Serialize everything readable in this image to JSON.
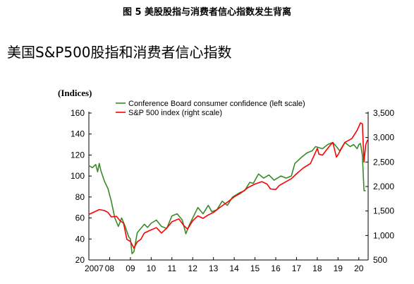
{
  "figure_caption": "图 5  美股股指与消费者信心指数发生背离",
  "figure_heading": "美国S&P500股指和消费者信心指数",
  "chart_data": {
    "type": "line",
    "unit_label": "(Indices)",
    "x_ticks": [
      "2007",
      "08",
      "09",
      "10",
      "11",
      "12",
      "13",
      "14",
      "15",
      "16",
      "17",
      "18",
      "19",
      "20"
    ],
    "x_range": [
      2007,
      2020.45
    ],
    "left_axis": {
      "range": [
        20,
        160
      ],
      "ticks": [
        "20",
        "40",
        "60",
        "80",
        "100",
        "120",
        "140",
        "160"
      ]
    },
    "right_axis": {
      "range": [
        500,
        3500
      ],
      "ticks": [
        "500",
        "1,000",
        "1,500",
        "2,000",
        "2,500",
        "3,000",
        "3,500"
      ]
    },
    "legend_position": "top-center",
    "series": [
      {
        "name": "Conference Board consumer confidence (left scale)",
        "axis": "left",
        "color": "#3a8a2a",
        "x": [
          2007.0,
          2007.17,
          2007.33,
          2007.42,
          2007.5,
          2007.58,
          2007.75,
          2007.92,
          2008.08,
          2008.25,
          2008.42,
          2008.58,
          2008.75,
          2008.92,
          2009.0,
          2009.08,
          2009.17,
          2009.33,
          2009.5,
          2009.67,
          2009.83,
          2010.0,
          2010.25,
          2010.5,
          2010.75,
          2011.0,
          2011.25,
          2011.5,
          2011.67,
          2011.83,
          2012.0,
          2012.25,
          2012.5,
          2012.75,
          2012.92,
          2013.17,
          2013.42,
          2013.67,
          2013.92,
          2014.25,
          2014.5,
          2014.75,
          2014.92,
          2015.17,
          2015.42,
          2015.67,
          2015.92,
          2016.25,
          2016.5,
          2016.75,
          2016.92,
          2017.25,
          2017.5,
          2017.75,
          2017.92,
          2018.25,
          2018.5,
          2018.75,
          2018.92,
          2019.08,
          2019.33,
          2019.58,
          2019.75,
          2019.92,
          2020.0,
          2020.08,
          2020.17,
          2020.25,
          2020.33
        ],
        "values": [
          110,
          108,
          111,
          104,
          112,
          105,
          95,
          88,
          76,
          60,
          52,
          60,
          52,
          42,
          40,
          26,
          28,
          46,
          50,
          54,
          51,
          55,
          58,
          52,
          50,
          62,
          64,
          58,
          45,
          53,
          60,
          70,
          64,
          72,
          66,
          68,
          76,
          72,
          80,
          84,
          86,
          94,
          93,
          102,
          98,
          101,
          96,
          100,
          98,
          100,
          112,
          118,
          122,
          124,
          128,
          126,
          130,
          132,
          128,
          124,
          132,
          128,
          130,
          126,
          130,
          131,
          120,
          86,
          86
        ]
      },
      {
        "name": "S&P 500 index (right scale)",
        "axis": "right",
        "color": "#ff0000",
        "x": [
          2007.0,
          2007.25,
          2007.5,
          2007.75,
          2007.92,
          2008.08,
          2008.33,
          2008.5,
          2008.67,
          2008.83,
          2009.0,
          2009.17,
          2009.33,
          2009.5,
          2009.67,
          2009.92,
          2010.25,
          2010.5,
          2010.75,
          2011.0,
          2011.33,
          2011.58,
          2011.75,
          2012.0,
          2012.25,
          2012.5,
          2012.75,
          2013.0,
          2013.33,
          2013.67,
          2014.0,
          2014.33,
          2014.67,
          2015.0,
          2015.33,
          2015.58,
          2015.75,
          2016.0,
          2016.17,
          2016.5,
          2016.75,
          2017.0,
          2017.33,
          2017.67,
          2018.0,
          2018.08,
          2018.25,
          2018.58,
          2018.75,
          2018.92,
          2019.0,
          2019.33,
          2019.67,
          2019.92,
          2020.08,
          2020.17,
          2020.25,
          2020.33,
          2020.42
        ],
        "values": [
          1430,
          1480,
          1530,
          1510,
          1470,
          1380,
          1390,
          1300,
          1250,
          920,
          880,
          740,
          870,
          920,
          1050,
          1100,
          1160,
          1050,
          1150,
          1280,
          1340,
          1200,
          1130,
          1300,
          1400,
          1350,
          1420,
          1470,
          1580,
          1680,
          1790,
          1870,
          1980,
          2050,
          2100,
          2050,
          1950,
          1940,
          2020,
          2100,
          2160,
          2260,
          2380,
          2470,
          2780,
          2660,
          2640,
          2820,
          2900,
          2600,
          2650,
          2900,
          2980,
          3150,
          3300,
          3280,
          2500,
          2850,
          2950
        ]
      }
    ]
  }
}
